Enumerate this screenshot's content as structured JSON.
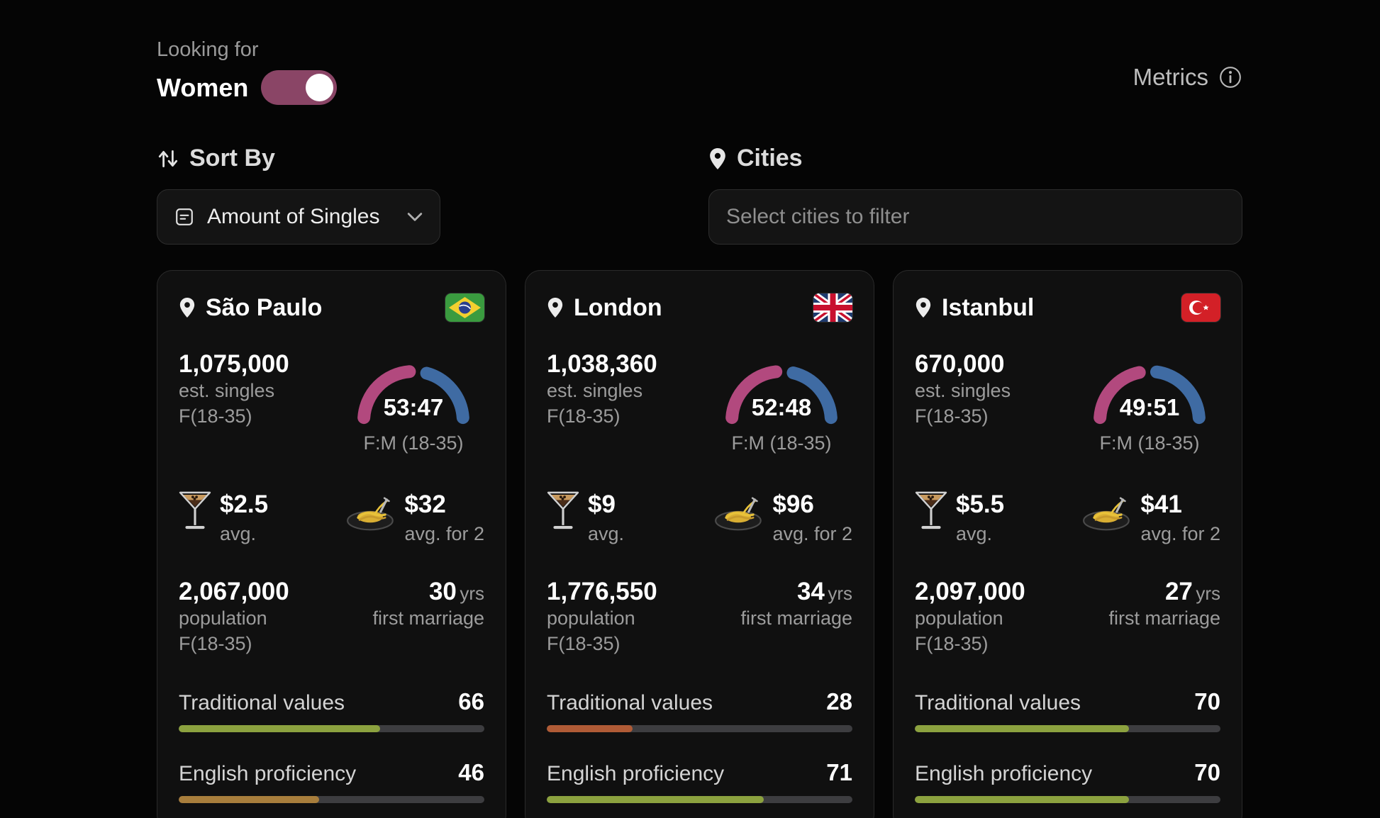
{
  "header": {
    "looking_for_label": "Looking for",
    "looking_for_value": "Women",
    "metrics_label": "Metrics"
  },
  "filters": {
    "sort_by_label": "Sort By",
    "sort_by_value": "Amount of Singles",
    "cities_label": "Cities",
    "cities_placeholder": "Select cities to filter"
  },
  "colors": {
    "gauge_female": "#b2497e",
    "gauge_male": "#3f6ba3",
    "bar_track": "#3d3d40",
    "toggle_on": "#8a4566"
  },
  "cards": [
    {
      "city": "São Paulo",
      "flag": "brazil",
      "singles": "1,075,000",
      "singles_label1": "est. singles",
      "singles_label2": "F(18-35)",
      "ratio_text": "53:47",
      "ratio_f": 53,
      "ratio_label": "F:M (18-35)",
      "drink_price": "$2.5",
      "drink_label": "avg.",
      "food_price": "$32",
      "food_label": "avg. for 2",
      "population": "2,067,000",
      "population_label1": "population",
      "population_label2": "F(18-35)",
      "marriage_age": "30",
      "marriage_unit": "yrs",
      "marriage_label": "first marriage",
      "traditional_label": "Traditional values",
      "traditional_value": 66,
      "traditional_color": "#8ca23f",
      "english_label": "English proficiency",
      "english_value": 46,
      "english_color": "#a87e3c"
    },
    {
      "city": "London",
      "flag": "uk",
      "singles": "1,038,360",
      "singles_label1": "est. singles",
      "singles_label2": "F(18-35)",
      "ratio_text": "52:48",
      "ratio_f": 52,
      "ratio_label": "F:M (18-35)",
      "drink_price": "$9",
      "drink_label": "avg.",
      "food_price": "$96",
      "food_label": "avg. for 2",
      "population": "1,776,550",
      "population_label1": "population",
      "population_label2": "F(18-35)",
      "marriage_age": "34",
      "marriage_unit": "yrs",
      "marriage_label": "first marriage",
      "traditional_label": "Traditional values",
      "traditional_value": 28,
      "traditional_color": "#b05b36",
      "english_label": "English proficiency",
      "english_value": 71,
      "english_color": "#8ca23f"
    },
    {
      "city": "Istanbul",
      "flag": "turkey",
      "singles": "670,000",
      "singles_label1": "est. singles",
      "singles_label2": "F(18-35)",
      "ratio_text": "49:51",
      "ratio_f": 49,
      "ratio_label": "F:M (18-35)",
      "drink_price": "$5.5",
      "drink_label": "avg.",
      "food_price": "$41",
      "food_label": "avg. for 2",
      "population": "2,097,000",
      "population_label1": "population",
      "population_label2": "F(18-35)",
      "marriage_age": "27",
      "marriage_unit": "yrs",
      "marriage_label": "first marriage",
      "traditional_label": "Traditional values",
      "traditional_value": 70,
      "traditional_color": "#8ca23f",
      "english_label": "English proficiency",
      "english_value": 70,
      "english_color": "#8ca23f"
    }
  ]
}
